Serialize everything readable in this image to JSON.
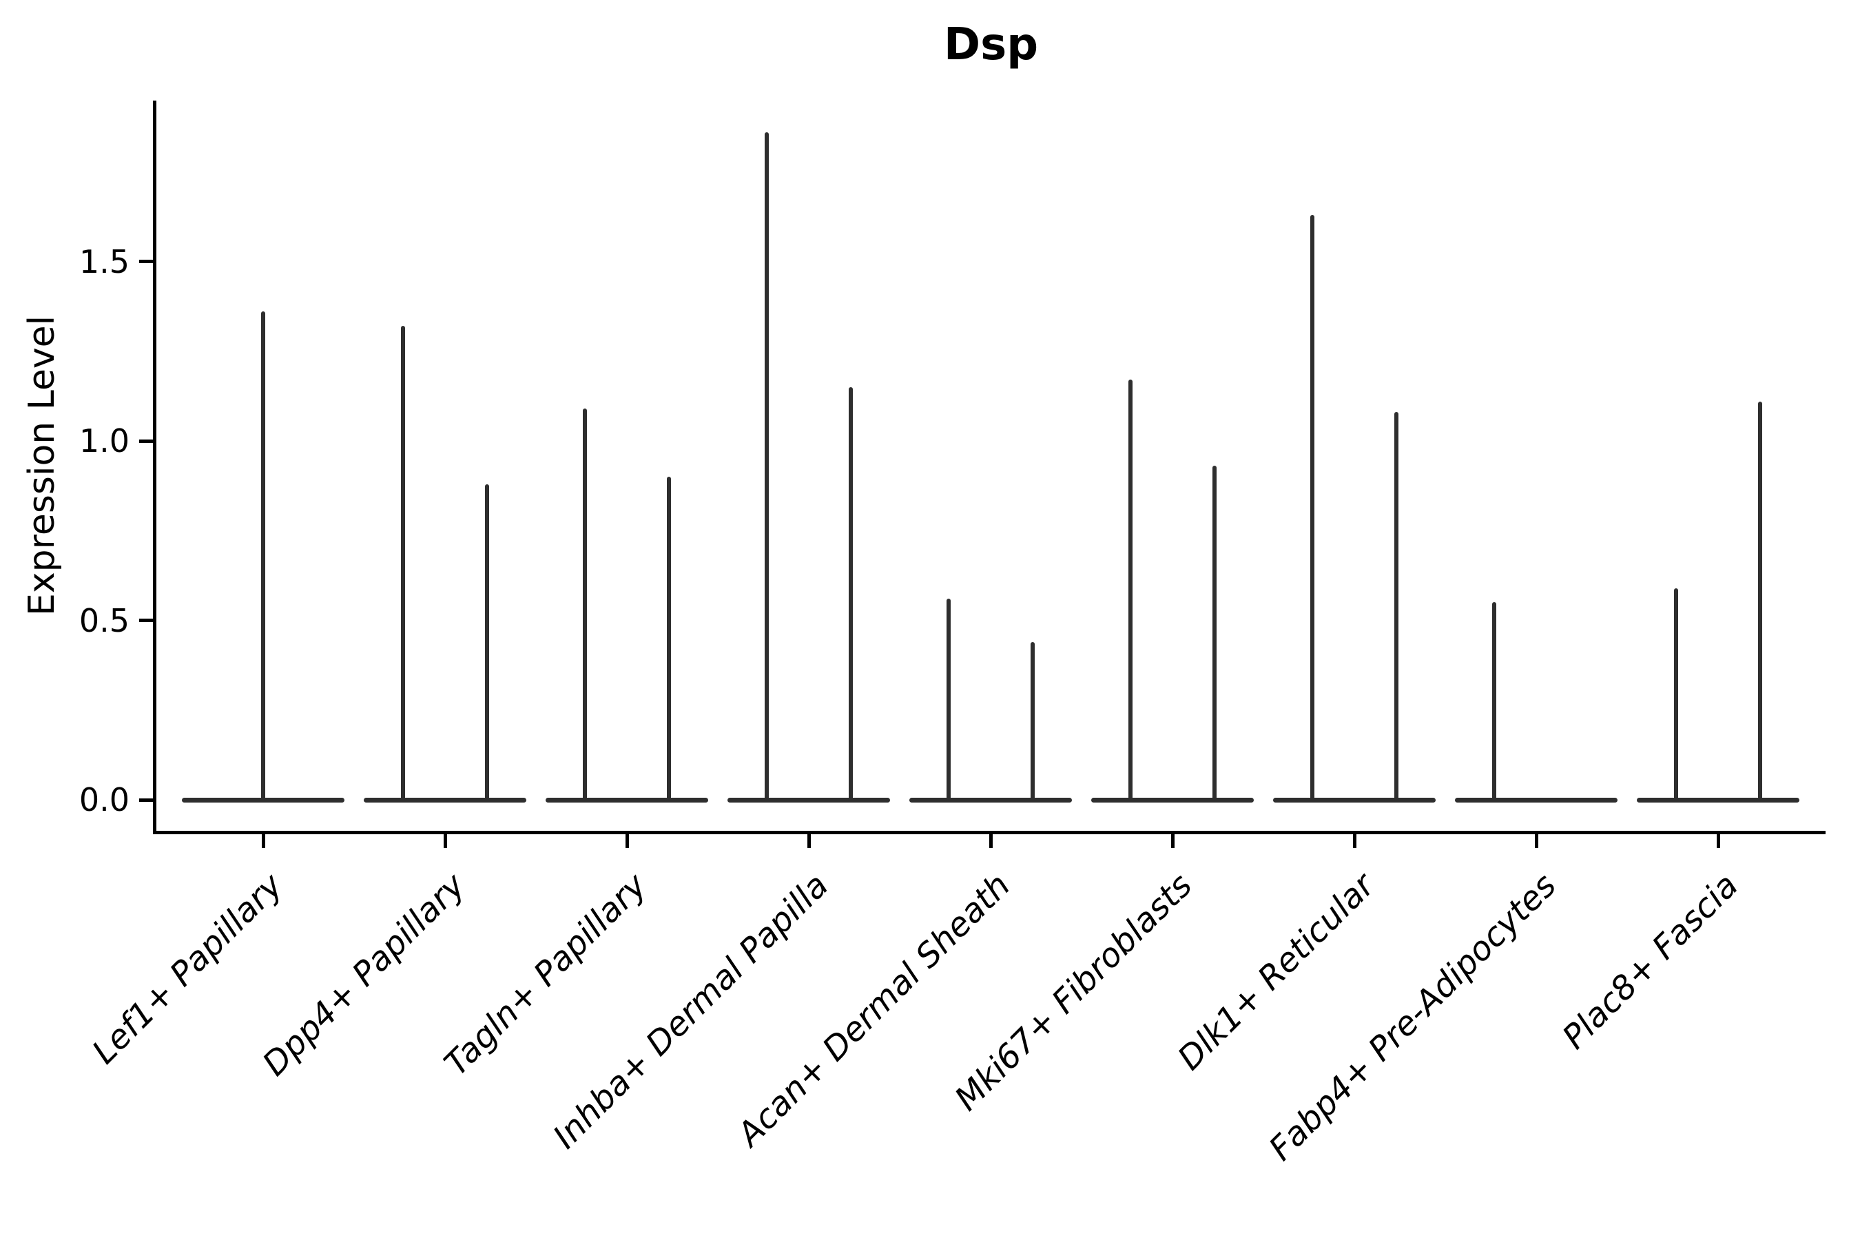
{
  "chart_data": {
    "type": "violin",
    "title": "Dsp",
    "xlabel": "",
    "ylabel": "Expression Level",
    "ylim": [
      -0.09,
      1.95
    ],
    "grid": false,
    "legend": false,
    "yticks": [
      {
        "value": 0.0,
        "label": "0.0"
      },
      {
        "value": 0.5,
        "label": "0.5"
      },
      {
        "value": 1.0,
        "label": "1.0"
      },
      {
        "value": 1.5,
        "label": "1.5"
      }
    ],
    "categories": [
      "Lef1+ Papillary",
      "Dpp4+ Papillary",
      "Tagln+ Papillary",
      "Inhba+ Dermal Papilla",
      "Acan+ Dermal Sheath",
      "Mki67+ Fibroblasts",
      "Dlk1+ Reticular",
      "Fabp4+ Pre-Adipocytes",
      "Plac8+ Fascia"
    ],
    "groups": [
      {
        "category": "Lef1+ Papillary",
        "violins": [
          {
            "position": "center",
            "max_expression": 1.36
          }
        ]
      },
      {
        "category": "Dpp4+ Papillary",
        "violins": [
          {
            "position": "left",
            "max_expression": 1.32
          },
          {
            "position": "right",
            "max_expression": 0.88
          }
        ]
      },
      {
        "category": "Tagln+ Papillary",
        "violins": [
          {
            "position": "left",
            "max_expression": 1.09
          },
          {
            "position": "right",
            "max_expression": 0.9
          }
        ]
      },
      {
        "category": "Inhba+ Dermal Papilla",
        "violins": [
          {
            "position": "left",
            "max_expression": 1.86
          },
          {
            "position": "right",
            "max_expression": 1.15
          }
        ]
      },
      {
        "category": "Acan+ Dermal Sheath",
        "violins": [
          {
            "position": "left",
            "max_expression": 0.56
          },
          {
            "position": "right",
            "max_expression": 0.44
          }
        ]
      },
      {
        "category": "Mki67+ Fibroblasts",
        "violins": [
          {
            "position": "left",
            "max_expression": 1.17
          },
          {
            "position": "right",
            "max_expression": 0.93
          }
        ]
      },
      {
        "category": "Dlk1+ Reticular",
        "violins": [
          {
            "position": "left",
            "max_expression": 1.63
          },
          {
            "position": "right",
            "max_expression": 1.08
          }
        ]
      },
      {
        "category": "Fabp4+ Pre-Adipocytes",
        "violins": [
          {
            "position": "left",
            "max_expression": 0.55
          }
        ]
      },
      {
        "category": "Plac8+ Fascia",
        "violins": [
          {
            "position": "left",
            "max_expression": 0.59
          },
          {
            "position": "right",
            "max_expression": 1.11
          }
        ]
      }
    ],
    "baseline_value": 0.0,
    "colors": {
      "violin": "#2e2e2e",
      "axis": "#000000",
      "text": "#000000",
      "background": "#ffffff"
    }
  }
}
